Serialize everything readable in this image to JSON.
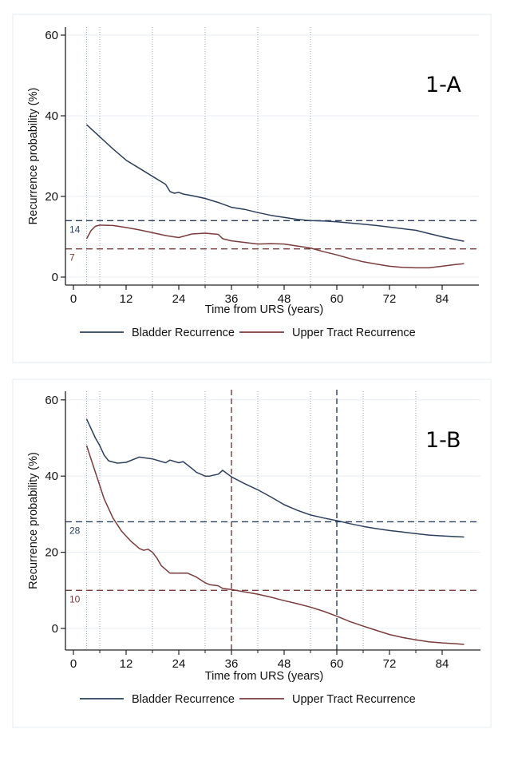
{
  "chart_data": [
    {
      "type": "line",
      "panel_label": "1-A",
      "xlabel": "Time from URS (years)",
      "ylabel": "Recurrence probability (%)",
      "xlim": [
        -3,
        92
      ],
      "ylim": [
        -2,
        62
      ],
      "x_ticks": [
        0,
        12,
        24,
        36,
        48,
        60,
        72,
        84
      ],
      "x_minor_ticks": [
        6,
        18,
        30,
        42,
        54,
        66,
        78
      ],
      "y_ticks": [
        0,
        20,
        40,
        60
      ],
      "grid": "horizontal",
      "legend": {
        "position": "bottom",
        "entries": [
          "Bladder Recurrence",
          "Upper Tract Recurrence"
        ]
      },
      "vertical_dotted_lines": [
        3,
        6,
        18,
        30,
        42,
        54
      ],
      "vertical_dashed_lines": [],
      "horizontal_reference_lines": [
        {
          "value": 14,
          "label": "14",
          "series": "Bladder Recurrence"
        },
        {
          "value": 7,
          "label": "7",
          "series": "Upper Tract Recurrence"
        }
      ],
      "series": [
        {
          "name": "Bladder Recurrence",
          "color": "#2b3f5c",
          "x": [
            3,
            6,
            9,
            12,
            15,
            18,
            21,
            22,
            23,
            24,
            25,
            27,
            30,
            33,
            36,
            39,
            42,
            45,
            48,
            51,
            54,
            57,
            60,
            63,
            66,
            69,
            72,
            75,
            78,
            81,
            84,
            87,
            89
          ],
          "y": [
            37.8,
            34.8,
            31.8,
            29.0,
            27.0,
            25.0,
            23.0,
            21.2,
            20.8,
            21.0,
            20.6,
            20.2,
            19.5,
            18.5,
            17.3,
            16.8,
            16.0,
            15.3,
            14.8,
            14.3,
            14.0,
            13.9,
            13.7,
            13.4,
            13.1,
            12.8,
            12.4,
            12.0,
            11.6,
            10.8,
            10.0,
            9.3,
            8.9
          ]
        },
        {
          "name": "Upper Tract Recurrence",
          "color": "#7a3b3b",
          "x": [
            3,
            4,
            5,
            6,
            9,
            12,
            15,
            18,
            21,
            24,
            27,
            30,
            33,
            34,
            36,
            39,
            42,
            45,
            48,
            51,
            54,
            57,
            60,
            63,
            66,
            69,
            72,
            75,
            78,
            81,
            84,
            87,
            89
          ],
          "y": [
            9.5,
            11.5,
            12.6,
            12.9,
            12.8,
            12.3,
            11.7,
            11.0,
            10.3,
            9.8,
            10.7,
            10.9,
            10.6,
            9.5,
            9.0,
            8.6,
            8.2,
            8.3,
            8.2,
            7.7,
            7.2,
            6.3,
            5.5,
            4.6,
            3.8,
            3.2,
            2.7,
            2.4,
            2.3,
            2.3,
            2.7,
            3.1,
            3.3
          ]
        }
      ]
    },
    {
      "type": "line",
      "panel_label": "1-B",
      "xlabel": "Time from URS (years)",
      "ylabel": "Recurrence probability (%)",
      "xlim": [
        -3,
        92
      ],
      "ylim": [
        -6,
        62
      ],
      "x_ticks": [
        0,
        12,
        24,
        36,
        48,
        60,
        72,
        84
      ],
      "x_minor_ticks": [
        6,
        18,
        30,
        42,
        54,
        66,
        78
      ],
      "y_ticks": [
        0,
        20,
        40,
        60
      ],
      "grid": "horizontal",
      "legend": {
        "position": "bottom",
        "entries": [
          "Bladder Recurrence",
          "Upper Tract Recurrence"
        ]
      },
      "vertical_dotted_lines": [
        3,
        6,
        18,
        30,
        42,
        54,
        66,
        78
      ],
      "vertical_dashed_lines": [
        {
          "value": 36,
          "series": "Upper Tract Recurrence"
        },
        {
          "value": 60,
          "series": "Bladder Recurrence"
        }
      ],
      "horizontal_reference_lines": [
        {
          "value": 28,
          "label": "28",
          "series": "Bladder Recurrence"
        },
        {
          "value": 10,
          "label": "10",
          "series": "Upper Tract Recurrence"
        }
      ],
      "series": [
        {
          "name": "Bladder Recurrence",
          "color": "#2b3f5c",
          "x": [
            3,
            4,
            5,
            6,
            7,
            8,
            10,
            12,
            15,
            18,
            21,
            22,
            24,
            25,
            27,
            28,
            30,
            31,
            33,
            34,
            36,
            39,
            42,
            45,
            48,
            51,
            54,
            57,
            60,
            63,
            66,
            69,
            72,
            75,
            78,
            81,
            84,
            87,
            89
          ],
          "y": [
            55.0,
            52.5,
            50.0,
            48.0,
            45.5,
            44.0,
            43.4,
            43.6,
            45.0,
            44.5,
            43.5,
            44.2,
            43.5,
            43.8,
            42.0,
            41.0,
            40.0,
            40.0,
            40.5,
            41.5,
            39.8,
            38.0,
            36.4,
            34.5,
            32.5,
            31.0,
            29.8,
            29.0,
            28.3,
            27.5,
            26.8,
            26.2,
            25.7,
            25.3,
            24.9,
            24.5,
            24.3,
            24.1,
            24.0
          ]
        },
        {
          "name": "Upper Tract Recurrence",
          "color": "#7a3b3b",
          "x": [
            3,
            5,
            7,
            9,
            11,
            13,
            15,
            16,
            17,
            18,
            19,
            20,
            21,
            22,
            24,
            26,
            28,
            30,
            31,
            33,
            34,
            36,
            39,
            42,
            45,
            48,
            51,
            54,
            57,
            60,
            63,
            66,
            69,
            72,
            75,
            78,
            81,
            84,
            87,
            89
          ],
          "y": [
            48.0,
            41.0,
            34.0,
            29.0,
            25.5,
            23.0,
            21.0,
            20.5,
            20.8,
            20.0,
            18.5,
            16.5,
            15.5,
            14.5,
            14.5,
            14.5,
            13.5,
            12.0,
            11.5,
            11.2,
            10.5,
            10.2,
            9.6,
            9.0,
            8.2,
            7.3,
            6.5,
            5.6,
            4.5,
            3.2,
            1.8,
            0.6,
            -0.5,
            -1.6,
            -2.4,
            -3.0,
            -3.5,
            -3.8,
            -4.0,
            -4.2
          ]
        }
      ]
    }
  ]
}
